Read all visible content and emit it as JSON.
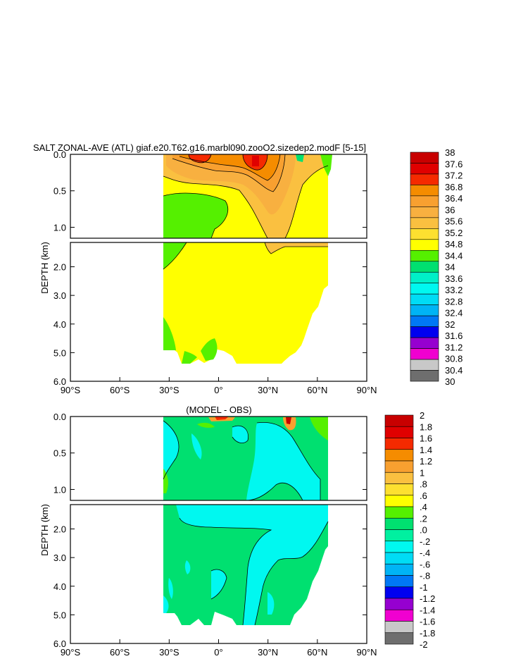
{
  "chart_data": [
    {
      "type": "heatmap",
      "title": "SALT ZONAL-AVE (ATL) giaf.e20.T62.g16.marbl090.zooO2.sizedep2.modF [5-15]",
      "ylabel": "DEPTH (km)",
      "x_ticks": [
        "90°S",
        "60°S",
        "30°S",
        "0°",
        "30°N",
        "60°N",
        "90°N"
      ],
      "xlim": [
        -90,
        90
      ],
      "y_ticks_upper": [
        "0.0",
        "0.5",
        "1.0"
      ],
      "y_ticks_lower": [
        "2.0",
        "3.0",
        "4.0",
        "5.0",
        "6.0"
      ],
      "ylim_upper": [
        0,
        1.15
      ],
      "ylim_lower": [
        1.15,
        6.0
      ],
      "colorbar_labels": [
        "38",
        "37.6",
        "37.2",
        "36.8",
        "36.4",
        "36",
        "35.6",
        "35.2",
        "34.8",
        "34.4",
        "34",
        "33.6",
        "33.2",
        "32.8",
        "32.4",
        "32",
        "31.6",
        "31.2",
        "30.8",
        "30.4",
        "30"
      ],
      "colorbar_colors": [
        "#c80000",
        "#e00000",
        "#f52a00",
        "#f58c00",
        "#f8a030",
        "#f8b040",
        "#fac040",
        "#fde030",
        "#ffff00",
        "#55f000",
        "#00e070",
        "#00f0c8",
        "#00f8f0",
        "#00dcf5",
        "#00b4f5",
        "#0078f5",
        "#0000f0",
        "#9600d0",
        "#f000d0",
        "#c8c8c8",
        "#6e6e6e"
      ]
    },
    {
      "type": "heatmap",
      "title": "(MODEL - OBS)",
      "ylabel": "DEPTH (km)",
      "x_ticks": [
        "90°S",
        "60°S",
        "30°S",
        "0°",
        "30°N",
        "60°N",
        "90°N"
      ],
      "xlim": [
        -90,
        90
      ],
      "y_ticks_upper": [
        "0.0",
        "0.5",
        "1.0"
      ],
      "y_ticks_lower": [
        "2.0",
        "3.0",
        "4.0",
        "5.0",
        "6.0"
      ],
      "ylim_upper": [
        0,
        1.15
      ],
      "ylim_lower": [
        1.15,
        6.0
      ],
      "colorbar_labels": [
        "2",
        "1.8",
        "1.6",
        "1.4",
        "1.2",
        "1",
        ".8",
        ".6",
        ".4",
        ".2",
        ".0",
        "-.2",
        "-.4",
        "-.6",
        "-.8",
        "-1",
        "-1.2",
        "-1.4",
        "-1.6",
        "-1.8",
        "-2"
      ],
      "colorbar_colors": [
        "#c80000",
        "#e00000",
        "#f52a00",
        "#f58c00",
        "#f8a030",
        "#fac040",
        "#fde030",
        "#ffff00",
        "#55f000",
        "#00e070",
        "#00f0a0",
        "#00f8f0",
        "#00dcf5",
        "#00b4f5",
        "#0078f5",
        "#0000f0",
        "#9600d0",
        "#f000d0",
        "#c8c8c8",
        "#6e6e6e"
      ]
    }
  ]
}
